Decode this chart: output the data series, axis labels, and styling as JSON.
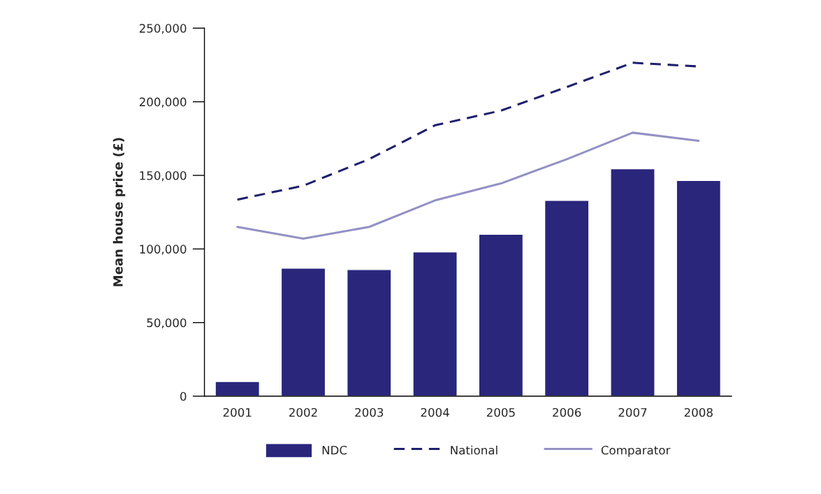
{
  "chart_data": {
    "type": "bar",
    "ylabel": "Mean house price (£)",
    "categories": [
      "2001",
      "2002",
      "2003",
      "2004",
      "2005",
      "2006",
      "2007",
      "2008"
    ],
    "series": [
      {
        "name": "NDC",
        "color": "#29267c",
        "values": [
          10000,
          87000,
          86000,
          98000,
          110000,
          133000,
          154500,
          146500
        ]
      },
      {
        "name": "National",
        "type": "line",
        "line_style": "dashed",
        "color": "#1f1f6e",
        "values": [
          133500,
          143000,
          161000,
          184000,
          194000,
          210000,
          226500,
          224000
        ]
      },
      {
        "name": "Comparator",
        "type": "line",
        "line_style": "solid",
        "color": "#9391c4",
        "values": [
          115000,
          107000,
          115000,
          133000,
          144500,
          161000,
          179000,
          173500
        ]
      }
    ],
    "ylim": [
      0,
      250000
    ],
    "yticks": [
      {
        "value": 0,
        "label": "0"
      },
      {
        "value": 50000,
        "label": "50,000"
      },
      {
        "value": 100000,
        "label": "100,000"
      },
      {
        "value": 150000,
        "label": "150,000"
      },
      {
        "value": 200000,
        "label": "200,000"
      },
      {
        "value": 250000,
        "label": "250,000"
      }
    ],
    "grid": false,
    "legend": "bottom",
    "marker": "none"
  }
}
